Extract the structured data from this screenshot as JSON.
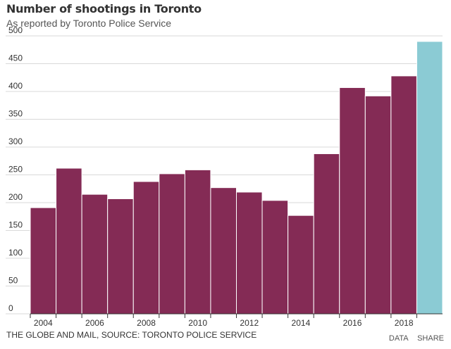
{
  "header": {
    "title": "Number of shootings in Toronto",
    "subtitle": "As reported by Toronto Police Service"
  },
  "footer": {
    "source": "THE GLOBE AND MAIL, SOURCE: TORONTO POLICE SERVICE",
    "data_link": "DATA",
    "share_link": "SHARE"
  },
  "chart_data": {
    "type": "bar",
    "title": "Number of shootings in Toronto",
    "subtitle": "As reported by Toronto Police Service",
    "categories": [
      "2004",
      "2005",
      "2006",
      "2007",
      "2008",
      "2009",
      "2010",
      "2011",
      "2012",
      "2013",
      "2014",
      "2015",
      "2016",
      "2017",
      "2018",
      "2019"
    ],
    "tick_labels": [
      "2004",
      "2006",
      "2008",
      "2010",
      "2012",
      "2014",
      "2016",
      "2018"
    ],
    "values": [
      191,
      262,
      215,
      207,
      238,
      252,
      259,
      227,
      219,
      204,
      177,
      288,
      407,
      392,
      428,
      490
    ],
    "bar_colors": [
      "#842b55",
      "#842b55",
      "#842b55",
      "#842b55",
      "#842b55",
      "#842b55",
      "#842b55",
      "#842b55",
      "#842b55",
      "#842b55",
      "#842b55",
      "#842b55",
      "#842b55",
      "#842b55",
      "#842b55",
      "#8bcbd4"
    ],
    "ylim": [
      0,
      500
    ],
    "yticks": [
      0,
      50,
      100,
      150,
      200,
      250,
      300,
      350,
      400,
      450,
      500
    ],
    "grid": true,
    "xlabel": "",
    "ylabel": ""
  }
}
